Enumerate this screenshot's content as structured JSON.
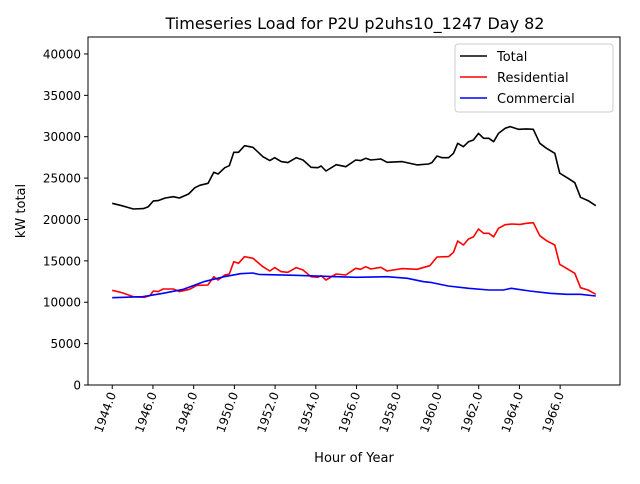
{
  "chart_data": {
    "type": "line",
    "title": "Timeseries Load for P2U p2uhs10_1247  Day 82",
    "xlabel": "Hour of Year",
    "ylabel": "kW total",
    "xlim": [
      1942.81,
      1968.94
    ],
    "ylim": [
      0,
      42050
    ],
    "xticks": [
      1944,
      1946,
      1948,
      1950,
      1952,
      1954,
      1956,
      1958,
      1960,
      1962,
      1964,
      1966
    ],
    "xtick_labels": [
      "1944.0",
      "1946.0",
      "1948.0",
      "1950.0",
      "1952.0",
      "1954.0",
      "1956.0",
      "1958.0",
      "1960.0",
      "1962.0",
      "1964.0",
      "1966.0"
    ],
    "yticks": [
      0,
      5000,
      10000,
      15000,
      20000,
      25000,
      30000,
      35000,
      40000
    ],
    "ytick_labels": [
      "0",
      "5000",
      "10000",
      "15000",
      "20000",
      "25000",
      "30000",
      "35000",
      "40000"
    ],
    "grid": false,
    "legend_position": "top-right",
    "series": [
      {
        "name": "Total",
        "color": "#000000",
        "x": [
          1944.0,
          1944.47,
          1945.04,
          1945.53,
          1945.77,
          1946.02,
          1946.26,
          1946.6,
          1947.0,
          1947.3,
          1947.75,
          1948.06,
          1948.3,
          1948.71,
          1948.99,
          1949.2,
          1949.53,
          1949.75,
          1949.97,
          1950.2,
          1950.5,
          1950.91,
          1951.4,
          1951.74,
          1951.98,
          1952.3,
          1952.63,
          1953.04,
          1953.37,
          1953.77,
          1954.1,
          1954.26,
          1954.5,
          1955.0,
          1955.47,
          1955.96,
          1956.2,
          1956.45,
          1956.7,
          1957.19,
          1957.5,
          1958.24,
          1958.97,
          1959.54,
          1959.7,
          1959.95,
          1960.2,
          1960.52,
          1960.76,
          1960.97,
          1961.25,
          1961.5,
          1961.74,
          1961.99,
          1962.24,
          1962.5,
          1962.73,
          1962.97,
          1963.3,
          1963.54,
          1963.95,
          1964.35,
          1964.68,
          1965.0,
          1965.33,
          1965.74,
          1965.98,
          1966.39,
          1966.72,
          1967.0,
          1967.37,
          1967.75
        ],
        "values": [
          21960,
          21670,
          21270,
          21310,
          21550,
          22240,
          22280,
          22600,
          22750,
          22600,
          23080,
          23840,
          24130,
          24370,
          25700,
          25500,
          26260,
          26500,
          28120,
          28120,
          28920,
          28720,
          27590,
          27110,
          27470,
          26990,
          26870,
          27470,
          27190,
          26310,
          26260,
          26460,
          25860,
          26620,
          26380,
          27190,
          27110,
          27390,
          27190,
          27310,
          26910,
          26990,
          26590,
          26710,
          26870,
          27670,
          27470,
          27470,
          28000,
          29200,
          28800,
          29400,
          29600,
          30400,
          29810,
          29810,
          29400,
          30400,
          31020,
          31220,
          30900,
          30950,
          30900,
          29200,
          28600,
          28000,
          25590,
          24980,
          24450,
          22680,
          22280,
          21670
        ]
      },
      {
        "name": "Residential",
        "color": "#ff0000",
        "x": [
          1944.0,
          1944.47,
          1945.04,
          1945.6,
          1945.85,
          1946.02,
          1946.26,
          1946.5,
          1947.0,
          1947.3,
          1947.8,
          1948.15,
          1948.7,
          1948.99,
          1949.2,
          1949.53,
          1949.75,
          1949.97,
          1950.2,
          1950.5,
          1950.91,
          1951.4,
          1951.74,
          1951.98,
          1952.3,
          1952.63,
          1953.04,
          1953.37,
          1953.77,
          1954.1,
          1954.26,
          1954.5,
          1955.0,
          1955.47,
          1955.96,
          1956.2,
          1956.45,
          1956.7,
          1957.19,
          1957.5,
          1958.24,
          1958.97,
          1959.6,
          1959.95,
          1960.52,
          1960.76,
          1960.97,
          1961.25,
          1961.5,
          1961.74,
          1961.99,
          1962.24,
          1962.5,
          1962.73,
          1962.97,
          1963.3,
          1963.62,
          1964.03,
          1964.35,
          1964.68,
          1965.0,
          1965.33,
          1965.74,
          1965.98,
          1966.39,
          1966.72,
          1967.0,
          1967.37,
          1967.75
        ],
        "values": [
          11440,
          11160,
          10670,
          10600,
          10800,
          11360,
          11280,
          11600,
          11600,
          11280,
          11560,
          12040,
          12080,
          13090,
          12690,
          13290,
          13410,
          14900,
          14700,
          15510,
          15310,
          14300,
          13780,
          14180,
          13690,
          13620,
          14180,
          13900,
          13090,
          13010,
          13210,
          12690,
          13410,
          13290,
          14100,
          13980,
          14300,
          14020,
          14220,
          13780,
          14060,
          13980,
          14420,
          15470,
          15510,
          16040,
          17400,
          16920,
          17640,
          17890,
          18850,
          18330,
          18330,
          17890,
          18930,
          19370,
          19450,
          19410,
          19540,
          19610,
          18040,
          17440,
          16920,
          14590,
          13980,
          13500,
          11760,
          11480,
          10960
        ]
      },
      {
        "name": "Commercial",
        "color": "#0000ff",
        "x": [
          1944.0,
          1945.5,
          1946.5,
          1947.5,
          1948.5,
          1949.5,
          1950.3,
          1950.9,
          1951.2,
          1953.0,
          1955.0,
          1956.0,
          1957.5,
          1958.5,
          1959.3,
          1959.7,
          1960.5,
          1961.5,
          1962.5,
          1963.2,
          1963.6,
          1964.5,
          1965.5,
          1966.3,
          1967.0,
          1967.75
        ],
        "values": [
          10550,
          10670,
          11080,
          11560,
          12480,
          13090,
          13450,
          13530,
          13370,
          13250,
          13090,
          13010,
          13090,
          12890,
          12480,
          12370,
          11960,
          11680,
          11480,
          11480,
          11680,
          11360,
          11080,
          10960,
          10960,
          10750
        ]
      }
    ]
  }
}
